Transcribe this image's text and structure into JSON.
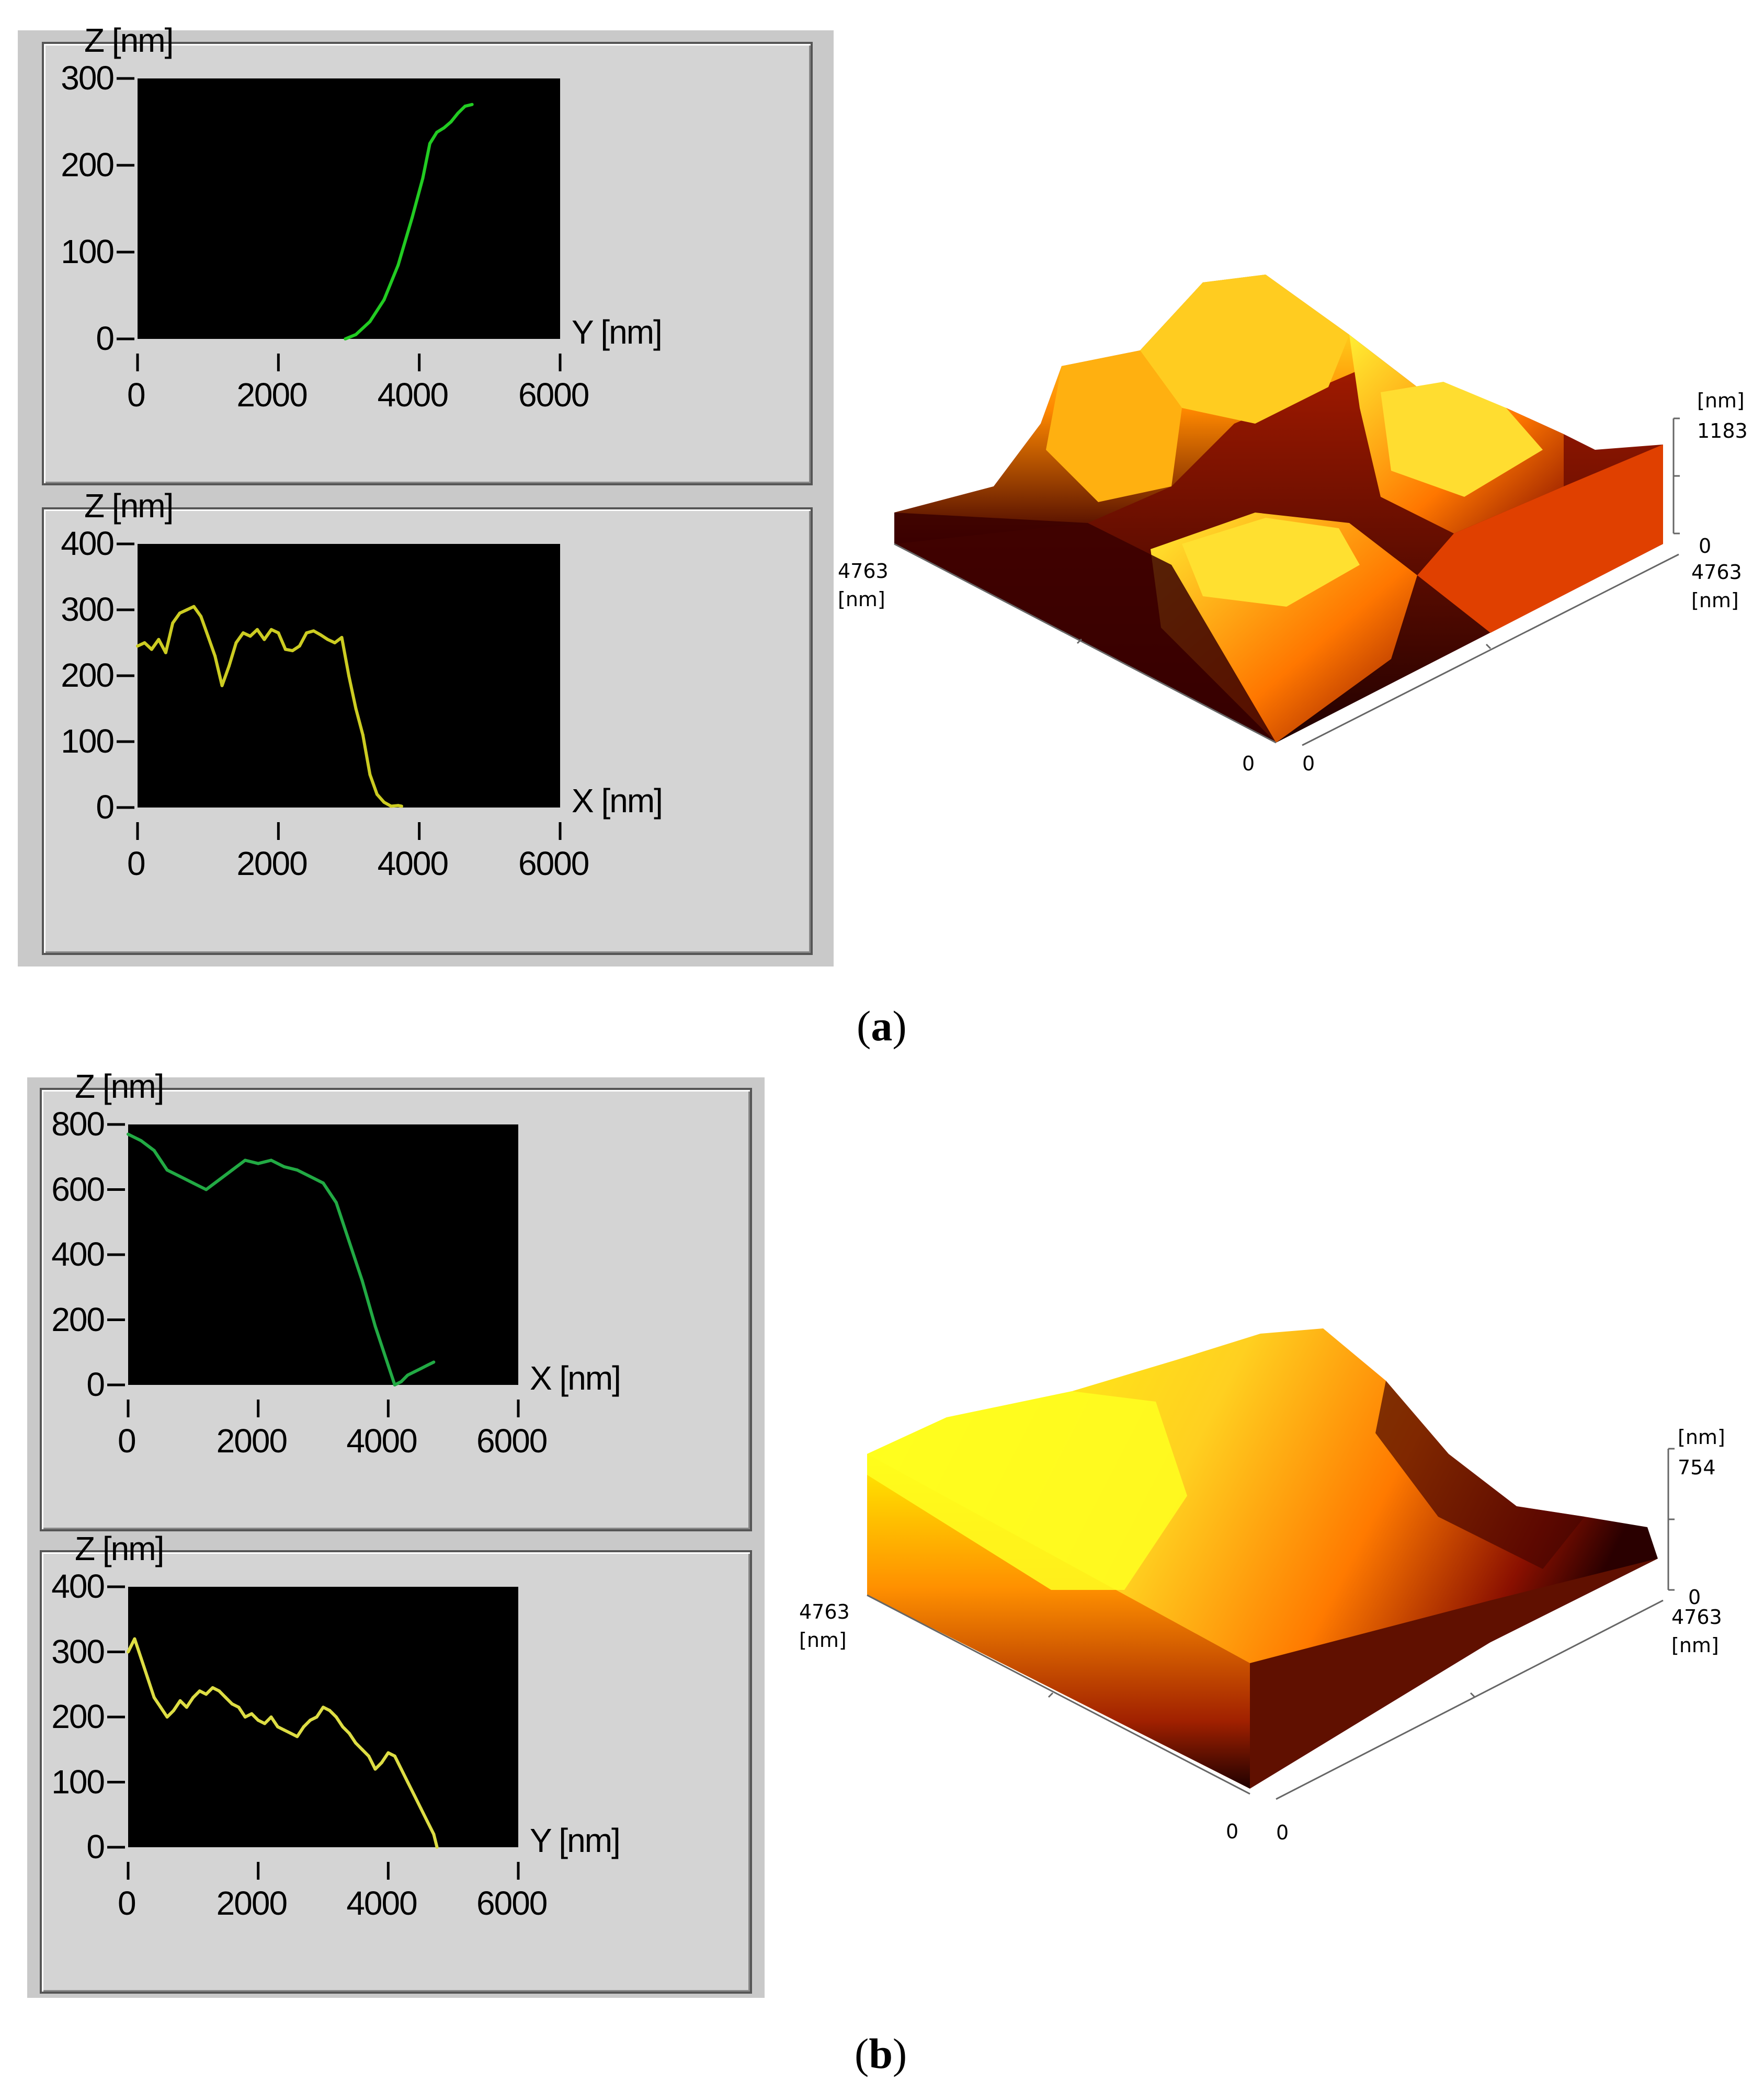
{
  "panel_a": {
    "caption_open": "(",
    "caption_letter": "a",
    "caption_close": ")",
    "surface": {
      "z_unit": "[nm]",
      "z_max": "1183",
      "z_min": "0",
      "left_size": "4763",
      "left_unit": "[nm]",
      "right_size": "4763",
      "right_unit": "[nm]",
      "origin_left": "0",
      "origin_right": "0"
    }
  },
  "panel_b": {
    "caption_open": "(",
    "caption_letter": "b",
    "caption_close": ")",
    "surface": {
      "z_unit": "[nm]",
      "z_max": "754",
      "z_min": "0",
      "left_size": "4763",
      "left_unit": "[nm]",
      "right_size": "4763",
      "right_unit": "[nm]",
      "origin_left": "0",
      "origin_right": "0"
    }
  },
  "chart_data": [
    {
      "id": "a1",
      "type": "line",
      "ylabel": "Z [nm]",
      "xlabel": "Y [nm]",
      "xlim": [
        0,
        6000
      ],
      "ylim": [
        0,
        300
      ],
      "xticks": [
        0,
        2000,
        4000,
        6000
      ],
      "yticks": [
        0,
        100,
        200,
        300
      ],
      "color": "#22cc22",
      "x": [
        2950,
        3100,
        3300,
        3500,
        3700,
        3900,
        4050,
        4150,
        4250,
        4350,
        4450,
        4550,
        4650,
        4750
      ],
      "y": [
        0,
        5,
        20,
        45,
        85,
        140,
        185,
        225,
        238,
        243,
        250,
        260,
        268,
        270
      ]
    },
    {
      "id": "a2",
      "type": "line",
      "ylabel": "Z [nm]",
      "xlabel": "X [nm]",
      "xlim": [
        0,
        6000
      ],
      "ylim": [
        0,
        400
      ],
      "xticks": [
        0,
        2000,
        4000,
        6000
      ],
      "yticks": [
        0,
        100,
        200,
        300,
        400
      ],
      "color": "#cccc22",
      "x": [
        0,
        100,
        200,
        300,
        400,
        500,
        600,
        700,
        800,
        900,
        1000,
        1100,
        1200,
        1300,
        1400,
        1500,
        1600,
        1700,
        1800,
        1900,
        2000,
        2100,
        2200,
        2300,
        2400,
        2500,
        2600,
        2700,
        2800,
        2900,
        3000,
        3100,
        3200,
        3300,
        3400,
        3500,
        3600,
        3700,
        3750
      ],
      "y": [
        245,
        250,
        240,
        255,
        235,
        280,
        295,
        300,
        305,
        290,
        260,
        230,
        185,
        215,
        250,
        265,
        260,
        270,
        255,
        270,
        265,
        240,
        238,
        245,
        265,
        268,
        262,
        255,
        250,
        258,
        200,
        150,
        110,
        50,
        20,
        8,
        2,
        3,
        2
      ]
    },
    {
      "id": "b1",
      "type": "line",
      "ylabel": "Z [nm]",
      "xlabel": "X [nm]",
      "xlim": [
        0,
        6000
      ],
      "ylim": [
        0,
        800
      ],
      "xticks": [
        0,
        2000,
        4000,
        6000
      ],
      "yticks": [
        0,
        200,
        400,
        600,
        800
      ],
      "color": "#22aa44",
      "x": [
        0,
        200,
        400,
        600,
        800,
        1000,
        1200,
        1400,
        1600,
        1800,
        2000,
        2200,
        2400,
        2600,
        2800,
        3000,
        3200,
        3400,
        3600,
        3800,
        4000,
        4100,
        4200,
        4300,
        4400,
        4500,
        4600,
        4700
      ],
      "y": [
        770,
        750,
        720,
        660,
        640,
        620,
        600,
        630,
        660,
        690,
        680,
        690,
        670,
        660,
        640,
        620,
        560,
        440,
        320,
        180,
        60,
        0,
        10,
        30,
        40,
        50,
        60,
        70
      ]
    },
    {
      "id": "b2",
      "type": "line",
      "ylabel": "Z [nm]",
      "xlabel": "Y [nm]",
      "xlim": [
        0,
        6000
      ],
      "ylim": [
        0,
        400
      ],
      "xticks": [
        0,
        2000,
        4000,
        6000
      ],
      "yticks": [
        0,
        100,
        200,
        300,
        400
      ],
      "color": "#dddd44",
      "x": [
        0,
        100,
        200,
        300,
        400,
        500,
        600,
        700,
        800,
        900,
        1000,
        1100,
        1200,
        1300,
        1400,
        1500,
        1600,
        1700,
        1800,
        1900,
        2000,
        2100,
        2200,
        2300,
        2400,
        2500,
        2600,
        2700,
        2800,
        2900,
        3000,
        3100,
        3200,
        3300,
        3400,
        3500,
        3600,
        3700,
        3800,
        3900,
        4000,
        4100,
        4200,
        4300,
        4400,
        4500,
        4600,
        4700,
        4750
      ],
      "y": [
        300,
        320,
        290,
        260,
        230,
        215,
        200,
        210,
        225,
        215,
        230,
        240,
        235,
        245,
        240,
        230,
        220,
        215,
        200,
        205,
        195,
        190,
        200,
        185,
        180,
        175,
        170,
        185,
        195,
        200,
        215,
        210,
        200,
        185,
        175,
        160,
        150,
        140,
        120,
        130,
        145,
        140,
        120,
        100,
        80,
        60,
        40,
        20,
        0
      ]
    }
  ]
}
